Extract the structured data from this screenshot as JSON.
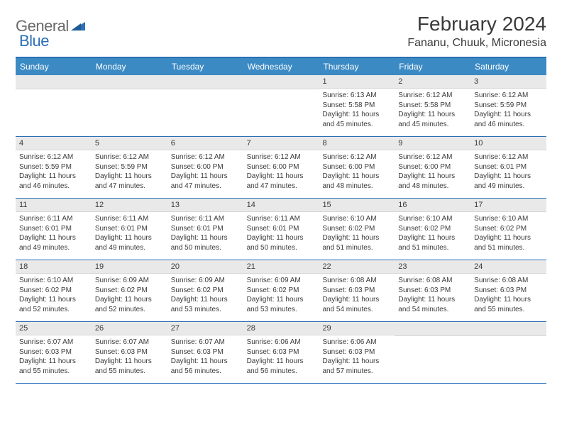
{
  "brand": {
    "part1": "General",
    "part2": "Blue"
  },
  "title": "February 2024",
  "location": "Fananu, Chuuk, Micronesia",
  "colors": {
    "header_bar": "#3b8ac4",
    "border": "#2b6fb5",
    "daynum_bg": "#e9e9e9",
    "text": "#3a3a3a",
    "logo_gray": "#6a6a6a",
    "logo_blue": "#2b6fb5"
  },
  "day_headers": [
    "Sunday",
    "Monday",
    "Tuesday",
    "Wednesday",
    "Thursday",
    "Friday",
    "Saturday"
  ],
  "weeks": [
    [
      {
        "n": "",
        "lines": []
      },
      {
        "n": "",
        "lines": []
      },
      {
        "n": "",
        "lines": []
      },
      {
        "n": "",
        "lines": []
      },
      {
        "n": "1",
        "lines": [
          "Sunrise: 6:13 AM",
          "Sunset: 5:58 PM",
          "Daylight: 11 hours and 45 minutes."
        ]
      },
      {
        "n": "2",
        "lines": [
          "Sunrise: 6:12 AM",
          "Sunset: 5:58 PM",
          "Daylight: 11 hours and 45 minutes."
        ]
      },
      {
        "n": "3",
        "lines": [
          "Sunrise: 6:12 AM",
          "Sunset: 5:59 PM",
          "Daylight: 11 hours and 46 minutes."
        ]
      }
    ],
    [
      {
        "n": "4",
        "lines": [
          "Sunrise: 6:12 AM",
          "Sunset: 5:59 PM",
          "Daylight: 11 hours and 46 minutes."
        ]
      },
      {
        "n": "5",
        "lines": [
          "Sunrise: 6:12 AM",
          "Sunset: 5:59 PM",
          "Daylight: 11 hours and 47 minutes."
        ]
      },
      {
        "n": "6",
        "lines": [
          "Sunrise: 6:12 AM",
          "Sunset: 6:00 PM",
          "Daylight: 11 hours and 47 minutes."
        ]
      },
      {
        "n": "7",
        "lines": [
          "Sunrise: 6:12 AM",
          "Sunset: 6:00 PM",
          "Daylight: 11 hours and 47 minutes."
        ]
      },
      {
        "n": "8",
        "lines": [
          "Sunrise: 6:12 AM",
          "Sunset: 6:00 PM",
          "Daylight: 11 hours and 48 minutes."
        ]
      },
      {
        "n": "9",
        "lines": [
          "Sunrise: 6:12 AM",
          "Sunset: 6:00 PM",
          "Daylight: 11 hours and 48 minutes."
        ]
      },
      {
        "n": "10",
        "lines": [
          "Sunrise: 6:12 AM",
          "Sunset: 6:01 PM",
          "Daylight: 11 hours and 49 minutes."
        ]
      }
    ],
    [
      {
        "n": "11",
        "lines": [
          "Sunrise: 6:11 AM",
          "Sunset: 6:01 PM",
          "Daylight: 11 hours and 49 minutes."
        ]
      },
      {
        "n": "12",
        "lines": [
          "Sunrise: 6:11 AM",
          "Sunset: 6:01 PM",
          "Daylight: 11 hours and 49 minutes."
        ]
      },
      {
        "n": "13",
        "lines": [
          "Sunrise: 6:11 AM",
          "Sunset: 6:01 PM",
          "Daylight: 11 hours and 50 minutes."
        ]
      },
      {
        "n": "14",
        "lines": [
          "Sunrise: 6:11 AM",
          "Sunset: 6:01 PM",
          "Daylight: 11 hours and 50 minutes."
        ]
      },
      {
        "n": "15",
        "lines": [
          "Sunrise: 6:10 AM",
          "Sunset: 6:02 PM",
          "Daylight: 11 hours and 51 minutes."
        ]
      },
      {
        "n": "16",
        "lines": [
          "Sunrise: 6:10 AM",
          "Sunset: 6:02 PM",
          "Daylight: 11 hours and 51 minutes."
        ]
      },
      {
        "n": "17",
        "lines": [
          "Sunrise: 6:10 AM",
          "Sunset: 6:02 PM",
          "Daylight: 11 hours and 51 minutes."
        ]
      }
    ],
    [
      {
        "n": "18",
        "lines": [
          "Sunrise: 6:10 AM",
          "Sunset: 6:02 PM",
          "Daylight: 11 hours and 52 minutes."
        ]
      },
      {
        "n": "19",
        "lines": [
          "Sunrise: 6:09 AM",
          "Sunset: 6:02 PM",
          "Daylight: 11 hours and 52 minutes."
        ]
      },
      {
        "n": "20",
        "lines": [
          "Sunrise: 6:09 AM",
          "Sunset: 6:02 PM",
          "Daylight: 11 hours and 53 minutes."
        ]
      },
      {
        "n": "21",
        "lines": [
          "Sunrise: 6:09 AM",
          "Sunset: 6:02 PM",
          "Daylight: 11 hours and 53 minutes."
        ]
      },
      {
        "n": "22",
        "lines": [
          "Sunrise: 6:08 AM",
          "Sunset: 6:03 PM",
          "Daylight: 11 hours and 54 minutes."
        ]
      },
      {
        "n": "23",
        "lines": [
          "Sunrise: 6:08 AM",
          "Sunset: 6:03 PM",
          "Daylight: 11 hours and 54 minutes."
        ]
      },
      {
        "n": "24",
        "lines": [
          "Sunrise: 6:08 AM",
          "Sunset: 6:03 PM",
          "Daylight: 11 hours and 55 minutes."
        ]
      }
    ],
    [
      {
        "n": "25",
        "lines": [
          "Sunrise: 6:07 AM",
          "Sunset: 6:03 PM",
          "Daylight: 11 hours and 55 minutes."
        ]
      },
      {
        "n": "26",
        "lines": [
          "Sunrise: 6:07 AM",
          "Sunset: 6:03 PM",
          "Daylight: 11 hours and 55 minutes."
        ]
      },
      {
        "n": "27",
        "lines": [
          "Sunrise: 6:07 AM",
          "Sunset: 6:03 PM",
          "Daylight: 11 hours and 56 minutes."
        ]
      },
      {
        "n": "28",
        "lines": [
          "Sunrise: 6:06 AM",
          "Sunset: 6:03 PM",
          "Daylight: 11 hours and 56 minutes."
        ]
      },
      {
        "n": "29",
        "lines": [
          "Sunrise: 6:06 AM",
          "Sunset: 6:03 PM",
          "Daylight: 11 hours and 57 minutes."
        ]
      },
      {
        "n": "",
        "lines": []
      },
      {
        "n": "",
        "lines": []
      }
    ]
  ]
}
